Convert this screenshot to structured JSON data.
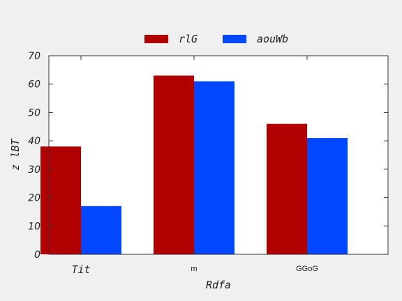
{
  "chart_data": {
    "type": "bar",
    "title": "",
    "xlabel": "Rdfa",
    "ylabel": "z lBT",
    "categories": [
      "Tit",
      "m",
      "GGoG"
    ],
    "ylim": [
      0,
      70
    ],
    "yticks": [
      0,
      10,
      20,
      30,
      40,
      50,
      60,
      70
    ],
    "grid": false,
    "legend_position": "top-center",
    "series": [
      {
        "name": "rlG",
        "color": "#b00000",
        "values": [
          38,
          63,
          46
        ]
      },
      {
        "name": "aouWb",
        "color": "#0047ff",
        "values": [
          17,
          61,
          41
        ]
      }
    ]
  }
}
